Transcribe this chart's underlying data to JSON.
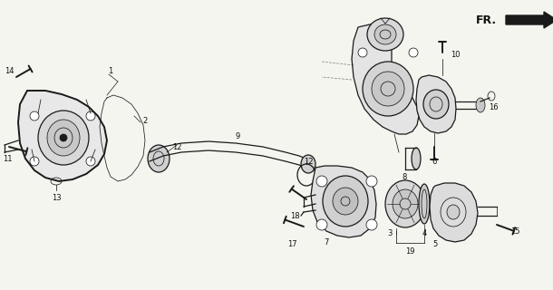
{
  "bg_color": "#f5f5f0",
  "line_color": "#1a1a1a",
  "label_color": "#111111",
  "fig_w": 6.1,
  "fig_h": 3.2,
  "dpi": 100,
  "lw_main": 0.9,
  "lw_thin": 0.55,
  "lw_bold": 1.4,
  "fs_label": 6.0
}
